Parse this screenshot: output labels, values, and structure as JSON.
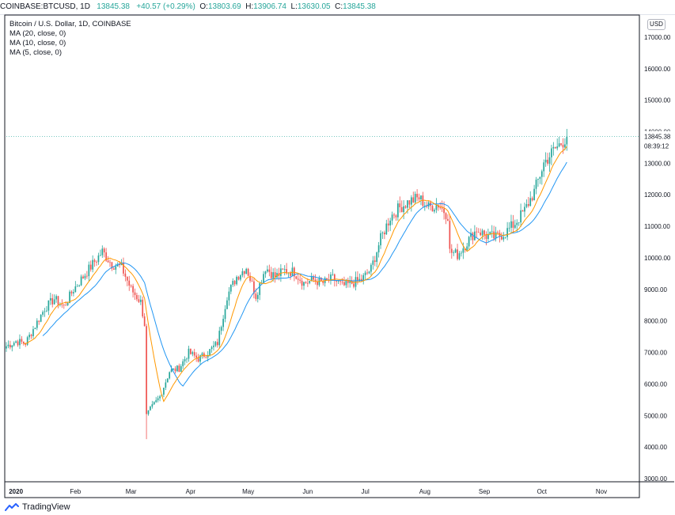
{
  "header": {
    "symbol": "COINBASE:BTCUSD, 1D",
    "last": "13845.38",
    "change": "+40.57 (+0.29%)",
    "o_label": "O:",
    "o_value": "13803.69",
    "h_label": "H:",
    "h_value": "13906.74",
    "l_label": "L:",
    "l_value": "13630.05",
    "c_label": "C:",
    "c_value": "13845.38"
  },
  "legend": {
    "title": "Bitcoin / U.S. Dollar, 1D, COINBASE",
    "ma20": "MA (20, close, 0)",
    "ma10": "MA (10, close, 0)",
    "ma5": "MA (5, close, 0)"
  },
  "currency_button": "USD",
  "price_label": "13845.38",
  "countdown_label": "08:39:12",
  "brand": "TradingView",
  "colors": {
    "up": "#26a69a",
    "down": "#ef5350",
    "ma20": "#2196f3",
    "ma10": "#ff9800",
    "ma5": "#4caf50",
    "price_tag": "#26a69a"
  },
  "chart_data": {
    "type": "candlestick",
    "y_ticks": [
      "3000.00",
      "4000.00",
      "5000.00",
      "6000.00",
      "7000.00",
      "8000.00",
      "9000.00",
      "10000.00",
      "11000.00",
      "12000.00",
      "13000.00",
      "14000.00",
      "15000.00",
      "16000.00",
      "17000.00"
    ],
    "x_ticks": [
      "2020",
      "Feb",
      "Mar",
      "Apr",
      "May",
      "Jun",
      "Jul",
      "Aug",
      "Sep",
      "Oct",
      "Nov"
    ],
    "ylim": [
      2900,
      17700
    ],
    "x_range_days": [
      0,
      310
    ],
    "series_anchors": [
      [
        0,
        7200
      ],
      [
        5,
        7350
      ],
      [
        10,
        7300
      ],
      [
        15,
        7850
      ],
      [
        20,
        8400
      ],
      [
        25,
        8700
      ],
      [
        30,
        8450
      ],
      [
        35,
        9000
      ],
      [
        40,
        9400
      ],
      [
        45,
        9800
      ],
      [
        50,
        10200
      ],
      [
        55,
        9800
      ],
      [
        60,
        9700
      ],
      [
        65,
        9000
      ],
      [
        70,
        8600
      ],
      [
        72,
        7900
      ],
      [
        73,
        5000
      ],
      [
        75,
        5200
      ],
      [
        80,
        5600
      ],
      [
        85,
        6400
      ],
      [
        90,
        6500
      ],
      [
        95,
        7000
      ],
      [
        100,
        6800
      ],
      [
        105,
        7000
      ],
      [
        110,
        7300
      ],
      [
        115,
        8800
      ],
      [
        120,
        9400
      ],
      [
        125,
        9700
      ],
      [
        130,
        8800
      ],
      [
        135,
        9700
      ],
      [
        140,
        9400
      ],
      [
        145,
        9600
      ],
      [
        150,
        9550
      ],
      [
        155,
        9200
      ],
      [
        160,
        9300
      ],
      [
        165,
        9200
      ],
      [
        170,
        9350
      ],
      [
        175,
        9100
      ],
      [
        180,
        9200
      ],
      [
        185,
        9300
      ],
      [
        190,
        9650
      ],
      [
        195,
        10600
      ],
      [
        200,
        11300
      ],
      [
        205,
        11600
      ],
      [
        210,
        11800
      ],
      [
        215,
        11900
      ],
      [
        220,
        11600
      ],
      [
        225,
        11700
      ],
      [
        230,
        11350
      ],
      [
        231,
        10200
      ],
      [
        235,
        10100
      ],
      [
        240,
        10500
      ],
      [
        245,
        10900
      ],
      [
        250,
        10700
      ],
      [
        255,
        10650
      ],
      [
        260,
        10800
      ],
      [
        265,
        11100
      ],
      [
        270,
        11500
      ],
      [
        275,
        12100
      ],
      [
        280,
        13000
      ],
      [
        285,
        13400
      ],
      [
        290,
        13700
      ],
      [
        292,
        13845
      ]
    ],
    "last_close": 13845.38,
    "ma_periods": [
      20,
      10,
      5
    ]
  }
}
